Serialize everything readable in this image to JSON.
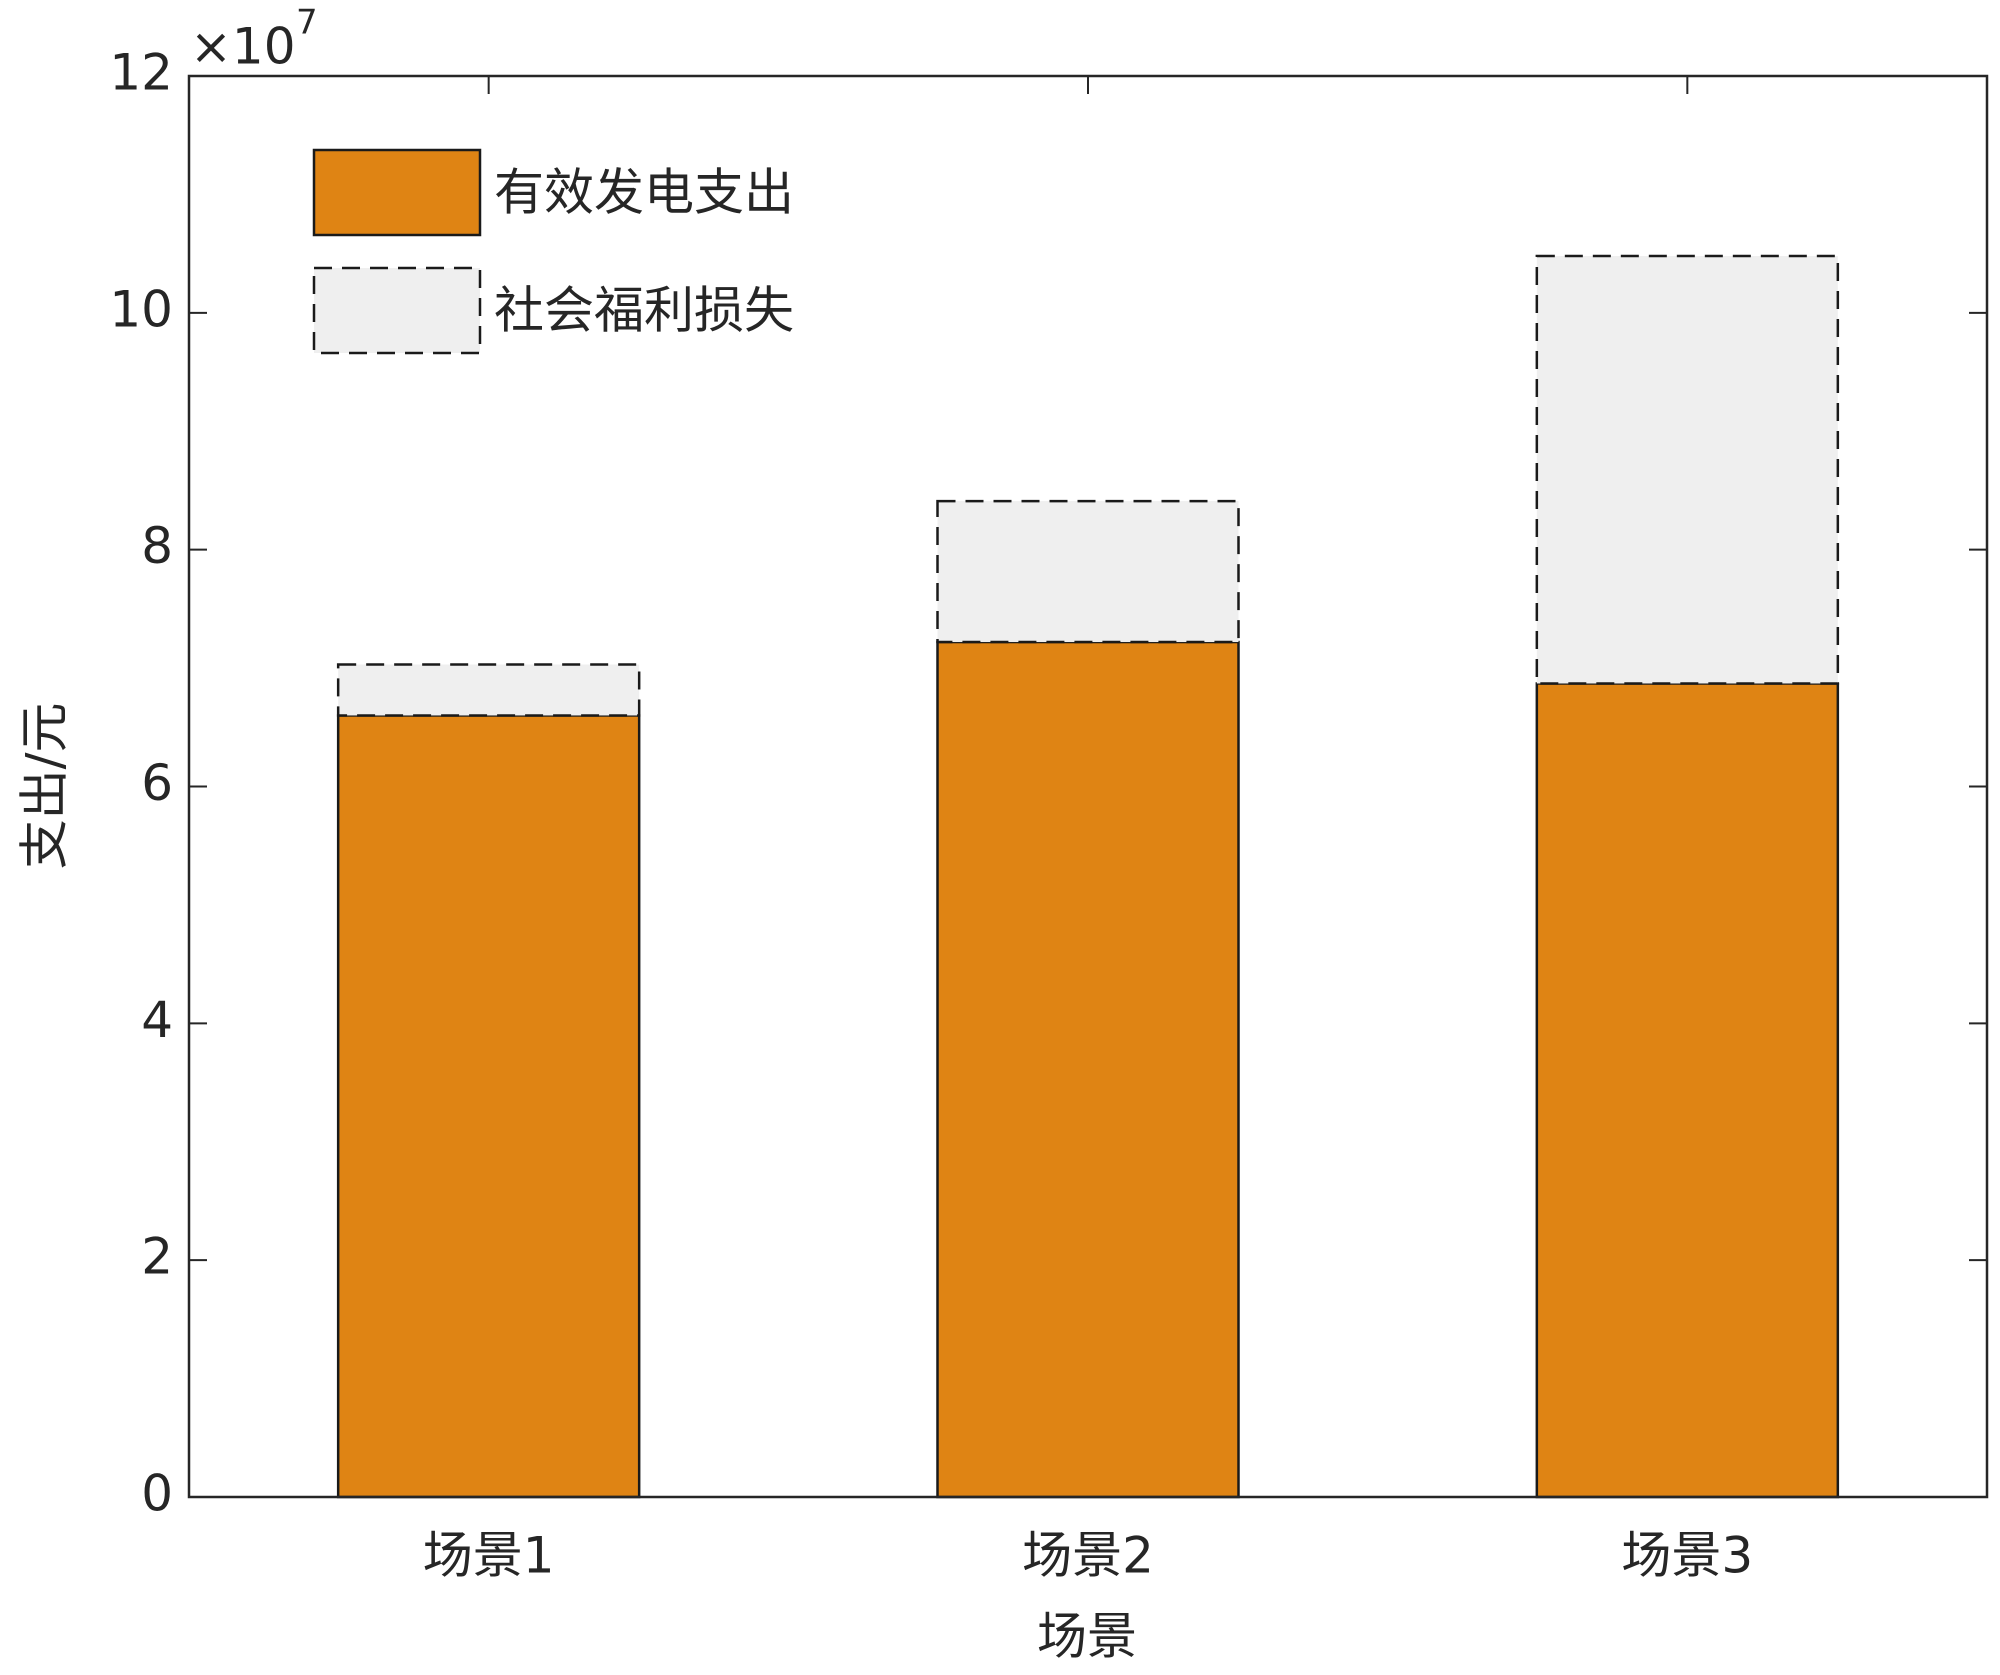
{
  "chart_data": {
    "type": "stacked_bar",
    "y_multiplier": {
      "base": "×10",
      "exponent": "7"
    },
    "xlabel": "场景",
    "ylabel": "支出/元",
    "categories": [
      "场景1",
      "场景2",
      "场景3"
    ],
    "series": [
      {
        "name": "有效发电支出",
        "color": "#df8414",
        "linestyle": "solid",
        "values": [
          6.6,
          7.22,
          6.87
        ]
      },
      {
        "name": "社会福利损失",
        "color": "#efefef",
        "linestyle": "dashed",
        "values": [
          0.43,
          1.19,
          3.61
        ]
      }
    ],
    "ylim": [
      0,
      12
    ],
    "yticks": [
      0,
      2,
      4,
      6,
      8,
      10,
      12
    ],
    "legend": "upper-left",
    "grid": false
  }
}
